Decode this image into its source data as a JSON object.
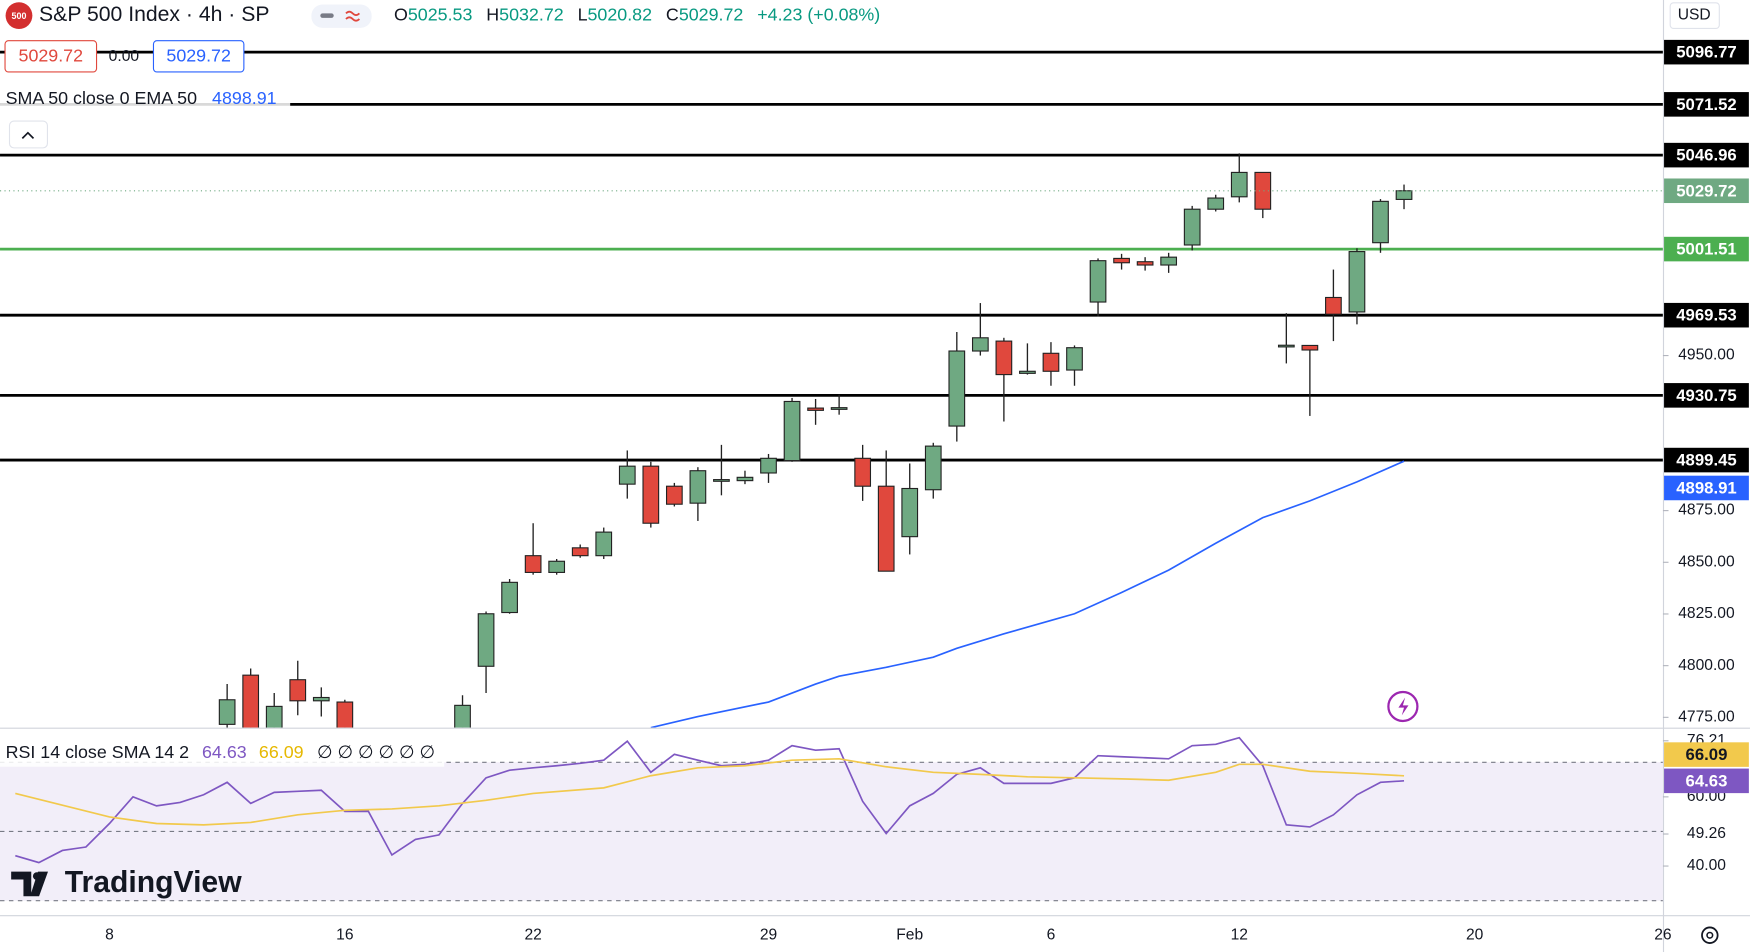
{
  "header": {
    "badge": "500",
    "symbol": "S&P 500 Index · 4h · SP",
    "o_label": "O",
    "h_label": "H",
    "l_label": "L",
    "c_label": "C",
    "change": "+4.23 (+0.08%)",
    "spread": "0.00",
    "currency": "USD",
    "logo": "TradingView"
  },
  "chart_data": [
    {
      "type": "candlestick",
      "x": [
        5,
        6,
        7,
        8,
        9,
        10,
        15,
        16,
        17,
        18,
        19,
        20,
        21,
        22,
        23,
        24,
        25,
        26,
        27,
        28,
        29,
        30,
        31,
        32,
        33,
        34,
        35,
        36,
        37,
        38,
        39,
        40,
        41,
        42,
        43,
        44,
        45,
        46,
        47,
        48,
        49,
        50,
        51,
        52,
        53,
        54,
        55
      ],
      "open": [
        4771.6,
        4795.4,
        4768,
        4793.2,
        4783,
        4782.4,
        4769.5,
        4799.7,
        4825.7,
        4853.2,
        4845.1,
        4857.0,
        4853.2,
        4887.8,
        4896.5,
        4886.8,
        4878.6,
        4889.5,
        4889.5,
        4893.2,
        4899.2,
        4924.6,
        4924.6,
        4900.3,
        4886.8,
        4862.4,
        4885.1,
        4915.9,
        4952.2,
        4957.0,
        4941.4,
        4951.1,
        4943.0,
        4975.9,
        4997.0,
        4995.4,
        4993.8,
        5003.5,
        5020.8,
        5026.8,
        5038.6,
        4954.9,
        4954.9,
        4978.1,
        4971.1,
        5004.6,
        5025.53
      ],
      "high": [
        4791.1,
        4798.6,
        4786.8,
        4802.4,
        4789.5,
        4783.5,
        4785.7,
        4826.2,
        4841.9,
        4868.9,
        4851.6,
        4858.6,
        4866.8,
        4904.1,
        4898.6,
        4888.4,
        4896.0,
        4906.8,
        4894.3,
        4902.4,
        4929.5,
        4929.0,
        4931.1,
        4906.8,
        4904.1,
        4897.8,
        4907.8,
        4961.4,
        4975.4,
        4958.6,
        4955.9,
        4956.5,
        4954.9,
        4997.0,
        4999.2,
        4997.6,
        4999.7,
        5022.4,
        5027.8,
        5047.8,
        5038.6,
        4970.5,
        4954.9,
        4991.6,
        5001.9,
        5025.7,
        5032.72
      ],
      "low": [
        4766,
        4760,
        4765,
        4776,
        4775.4,
        4760,
        4765,
        4786.8,
        4825.1,
        4844,
        4844,
        4852.2,
        4851.6,
        4880.8,
        4866.8,
        4877.0,
        4870.0,
        4882.4,
        4887.8,
        4888.4,
        4898.6,
        4916.5,
        4921.4,
        4879.7,
        4845.7,
        4853.8,
        4880.8,
        4908.4,
        4950.0,
        4918.1,
        4940.8,
        4935.4,
        4935.4,
        4968.9,
        4991.6,
        4991.1,
        4990.0,
        5000.8,
        5019.7,
        5024.1,
        5016.5,
        4946.2,
        4920.8,
        4957.0,
        4965.1,
        4999.7,
        5020.82
      ],
      "close": [
        4783.5,
        4764,
        4780.3,
        4783,
        4784.6,
        4765,
        4780.8,
        4825.1,
        4840.3,
        4845.1,
        4850.5,
        4853.2,
        4864.6,
        4896.5,
        4868.9,
        4878.1,
        4894.3,
        4890.0,
        4891.1,
        4900.3,
        4927.8,
        4923.5,
        4924.8,
        4886.8,
        4845.7,
        4885.7,
        4906.2,
        4952.2,
        4958.6,
        4940.8,
        4942.4,
        4942.4,
        4953.8,
        4995.9,
        4994.9,
        4993.8,
        4997.6,
        5020.8,
        5026.2,
        5038.6,
        5020.8,
        4955.0,
        4952.7,
        4970.0,
        5000.3,
        5024.6,
        5029.72
      ],
      "up_color": "#6fa982",
      "down_color": "#e0483d",
      "series": [
        {
          "name": "SMA 50 close 0 EMA 50",
          "color": "#2962ff",
          "x": [
            23,
            25,
            28,
            30,
            31,
            33,
            35,
            36,
            38,
            40,
            41,
            43,
            45,
            47,
            49,
            51,
            53,
            55
          ],
          "values": [
            4770,
            4775.4,
            4782.4,
            4791.1,
            4794.9,
            4799.2,
            4804.1,
            4808.4,
            4815.4,
            4821.9,
            4825.1,
            4835.4,
            4846.2,
            4859.2,
            4871.6,
            4879.7,
            4888.9,
            4898.91
          ]
        }
      ],
      "levels": [
        {
          "value": 5096.77,
          "color": "#000000"
        },
        {
          "value": 5071.52,
          "color": "#000000"
        },
        {
          "value": 5046.96,
          "color": "#000000"
        },
        {
          "value": 5001.51,
          "color": "#4caf50"
        },
        {
          "value": 4969.53,
          "color": "#000000"
        },
        {
          "value": 4930.75,
          "color": "#000000"
        },
        {
          "value": 4899.45,
          "color": "#000000"
        }
      ],
      "xlim": [
        -4.65,
        66
      ],
      "xticks": [
        {
          "value": 0,
          "label": "8"
        },
        {
          "value": 10,
          "label": "16"
        },
        {
          "value": 18,
          "label": "22"
        },
        {
          "value": 28,
          "label": "29"
        },
        {
          "value": 34,
          "label": "Feb"
        },
        {
          "value": 40,
          "label": "6"
        },
        {
          "value": 48,
          "label": "12"
        },
        {
          "value": 58,
          "label": "20"
        },
        {
          "value": 66,
          "label": "26"
        }
      ],
      "ylim": [
        4770,
        5122
      ],
      "yticks": [
        {
          "value": 4775,
          "label": "4775.00"
        },
        {
          "value": 4800,
          "label": "4800.00"
        },
        {
          "value": 4825,
          "label": "4825.00"
        },
        {
          "value": 4850,
          "label": "4850.00"
        },
        {
          "value": 4875,
          "label": "4875.00"
        },
        {
          "value": 4950,
          "label": "4950.00"
        }
      ]
    },
    {
      "type": "line",
      "title": "RSI 14 close SMA 14 2",
      "status": "∅ ∅ ∅ ∅ ∅ ∅",
      "x": [
        -4,
        -3,
        -2,
        -1,
        0,
        1,
        2,
        3,
        4,
        5,
        6,
        7,
        8,
        9,
        10,
        11,
        12,
        13,
        14,
        15,
        16,
        17,
        18,
        19,
        20,
        21,
        22,
        23,
        24,
        25,
        26,
        27,
        28,
        29,
        30,
        31,
        32,
        33,
        34,
        35,
        36,
        37,
        38,
        39,
        40,
        41,
        42,
        43,
        44,
        45,
        46,
        47,
        48,
        49,
        50,
        51,
        52,
        53,
        54,
        55
      ],
      "series": [
        {
          "color": "#7e57c2",
          "values": [
            43,
            41,
            44.5,
            45.5,
            52.3,
            60,
            57.4,
            58.4,
            60.6,
            64.2,
            58.1,
            61.3,
            61.6,
            61.9,
            55.8,
            55.8,
            43.2,
            47.7,
            49,
            58.1,
            65.5,
            67.7,
            68.4,
            69,
            69.7,
            70.6,
            76.1,
            67.1,
            72.3,
            70.6,
            69,
            69.4,
            70.6,
            74.8,
            73.5,
            73.9,
            58.7,
            49.4,
            57.4,
            61,
            66.5,
            68.4,
            63.9,
            63.9,
            63.9,
            65.5,
            71.9,
            71.6,
            71.3,
            71,
            74.8,
            75.2,
            77.1,
            69,
            51.9,
            51.3,
            54.8,
            60.6,
            64.2,
            64.63
          ]
        },
        {
          "color": "#f2c94c",
          "x": [
            -4,
            0,
            2,
            4,
            6,
            8,
            10,
            12,
            14,
            16,
            18,
            21,
            23,
            25,
            27,
            29,
            31,
            33,
            35,
            37,
            39,
            41,
            43,
            45,
            47,
            48,
            49,
            51,
            53,
            55
          ],
          "values": [
            61,
            54.2,
            52.3,
            51.9,
            52.6,
            54.8,
            56.1,
            56.5,
            57.4,
            59,
            61,
            62.6,
            66.1,
            68.4,
            69,
            70.6,
            71,
            68.7,
            67.1,
            66.5,
            65.8,
            65.5,
            65.2,
            64.8,
            67.1,
            69.4,
            69.4,
            67.4,
            66.8,
            66.09
          ]
        }
      ],
      "band": [
        30,
        70
      ],
      "levels": [
        70,
        50,
        30
      ],
      "ylim": [
        25.8,
        80
      ],
      "yticks": [
        {
          "value": 76.21,
          "label": "76.21"
        },
        {
          "value": 60,
          "label": "60.00"
        },
        {
          "value": 49.26,
          "label": "49.26"
        },
        {
          "value": 40,
          "label": "40.00"
        }
      ]
    }
  ]
}
